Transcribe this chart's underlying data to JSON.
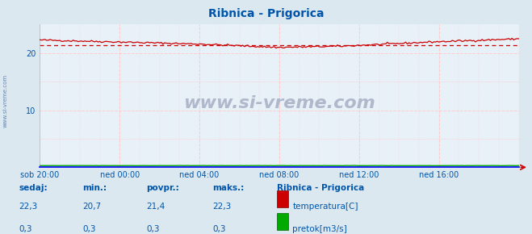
{
  "title": "Ribnica - Prigorica",
  "title_color": "#0055aa",
  "bg_color": "#dce8f0",
  "plot_bg_color": "#e8f0f8",
  "grid_h_color": "#ffcccc",
  "grid_v_color": "#ffcccc",
  "axis_line_color": "#0000ff",
  "arrow_color": "#cc0000",
  "x_labels": [
    "sob 20:00",
    "ned 00:00",
    "ned 04:00",
    "ned 08:00",
    "ned 12:00",
    "ned 16:00"
  ],
  "x_ticks_pos": [
    0,
    48,
    96,
    144,
    192,
    240
  ],
  "x_max": 288,
  "y_min": 0,
  "y_max": 25,
  "y_ticks": [
    10,
    20
  ],
  "temp_avg": 21.4,
  "temp_color": "#cc0000",
  "pretok_color": "#00aa00",
  "pretok_value": 0.3,
  "watermark_text": "www.si-vreme.com",
  "watermark_color": "#b0b8cc",
  "label_color": "#0055aa",
  "table_header_color": "#0055aa",
  "footer_bg_color": "#dce8f0",
  "sedaj_temp": "22,3",
  "min_temp": "20,7",
  "povpr_temp": "21,4",
  "maks_temp": "22,3",
  "sedaj_pretok": "0,3",
  "min_pretok": "0,3",
  "povpr_pretok": "0,3",
  "maks_pretok": "0,3",
  "left_label": "www.si-vreme.com",
  "left_label_color": "#5577aa"
}
